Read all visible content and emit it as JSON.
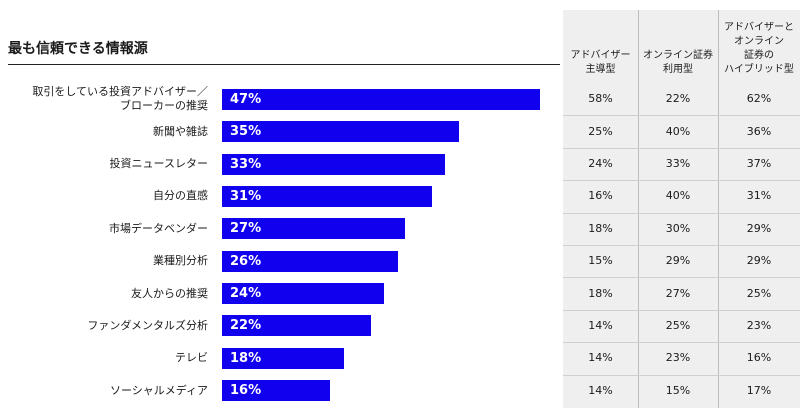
{
  "chart_data": {
    "type": "bar",
    "title": "最も信頼できる情報源",
    "categories": [
      "取引をしている投資アドバイザー／\nブローカーの推奨",
      "新聞や雑誌",
      "投資ニュースレター",
      "自分の直感",
      "市場データベンダー",
      "業種別分析",
      "友人からの推奨",
      "ファンダメンタルズ分析",
      "テレビ",
      "ソーシャルメディア"
    ],
    "values": [
      47,
      35,
      33,
      31,
      27,
      26,
      24,
      22,
      18,
      16
    ],
    "value_labels": [
      "47%",
      "35%",
      "33%",
      "31%",
      "27%",
      "26%",
      "24%",
      "22%",
      "18%",
      "16%"
    ],
    "bar_color": "#1100ee",
    "table": {
      "columns": [
        "アドバイザー\n主導型",
        "オンライン証券\n利用型",
        "アドバイザーと\nオンライン\n証券の\nハイブリッド型"
      ],
      "rows": [
        [
          "58%",
          "22%",
          "62%"
        ],
        [
          "25%",
          "40%",
          "36%"
        ],
        [
          "24%",
          "33%",
          "37%"
        ],
        [
          "16%",
          "40%",
          "31%"
        ],
        [
          "18%",
          "30%",
          "29%"
        ],
        [
          "15%",
          "29%",
          "29%"
        ],
        [
          "18%",
          "27%",
          "25%"
        ],
        [
          "14%",
          "25%",
          "23%"
        ],
        [
          "14%",
          "23%",
          "16%"
        ],
        [
          "14%",
          "15%",
          "17%"
        ]
      ]
    }
  }
}
